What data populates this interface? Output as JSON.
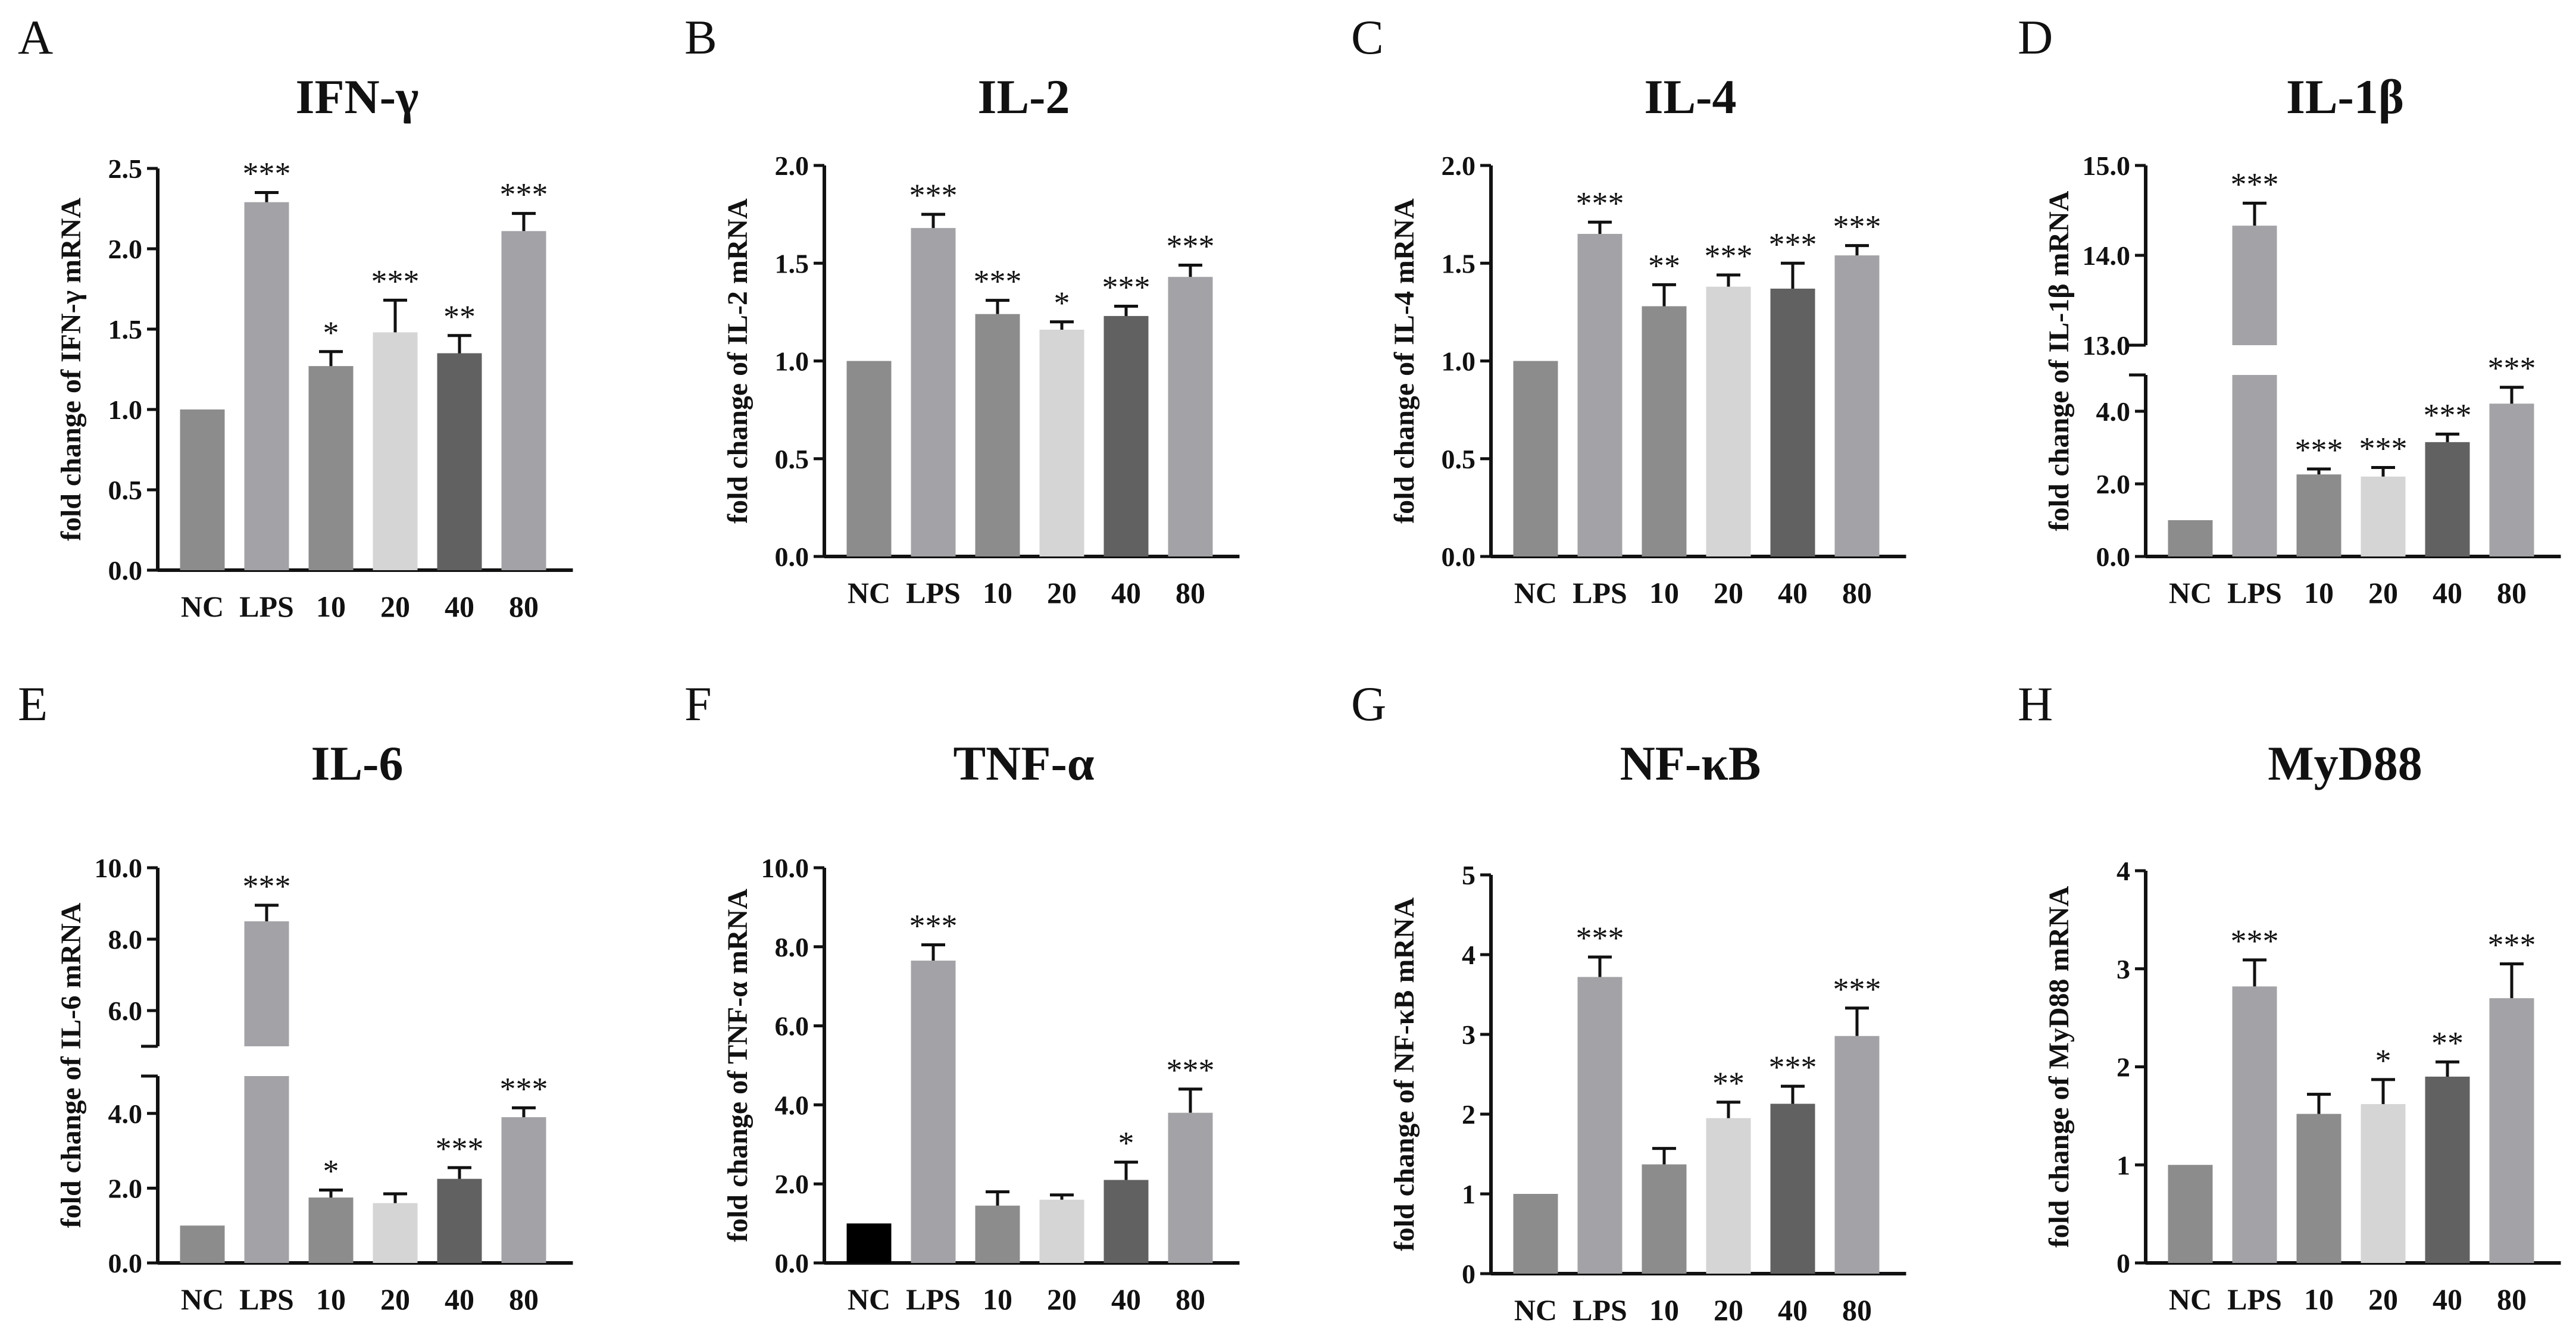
{
  "colors": {
    "NC": "#8c8c8c",
    "NC_black": "#000000",
    "LPS": "#a3a3a7",
    "10": "#8c8c8c",
    "20": "#d5d5d5",
    "40": "#616161",
    "80": "#a3a3a7",
    "axis": "#111111"
  },
  "chart_data": [
    {
      "type": "bar",
      "letter": "A",
      "title": "IFN-γ",
      "ylabel": "fold change of IFN-γ mRNA",
      "categories": [
        "NC",
        "LPS",
        "10",
        "20",
        "40",
        "80"
      ],
      "values": [
        1.0,
        2.29,
        1.27,
        1.48,
        1.35,
        2.11
      ],
      "errors": [
        0,
        0.06,
        0.09,
        0.2,
        0.11,
        0.11
      ],
      "significance": [
        "",
        "***",
        "*",
        "***",
        "**",
        "***"
      ],
      "ylim": [
        0,
        2.5
      ],
      "yticks": [
        0,
        0.5,
        1.0,
        1.5,
        2.0,
        2.5
      ],
      "ytick_labels": [
        "0.0",
        "0.5",
        "1.0",
        "1.5",
        "2.0",
        "2.5"
      ]
    },
    {
      "type": "bar",
      "letter": "B",
      "title": "IL-2",
      "ylabel": "fold change of IL-2 mRNA",
      "categories": [
        "NC",
        "LPS",
        "10",
        "20",
        "40",
        "80"
      ],
      "values": [
        1.0,
        1.68,
        1.24,
        1.16,
        1.23,
        1.43
      ],
      "errors": [
        0,
        0.07,
        0.07,
        0.04,
        0.05,
        0.06
      ],
      "significance": [
        "",
        "***",
        "***",
        "*",
        "***",
        "***"
      ],
      "ylim": [
        0,
        2.0
      ],
      "yticks": [
        0,
        0.5,
        1.0,
        1.5,
        2.0
      ],
      "ytick_labels": [
        "0.0",
        "0.5",
        "1.0",
        "1.5",
        "2.0"
      ]
    },
    {
      "type": "bar",
      "letter": "C",
      "title": "IL-4",
      "ylabel": "fold change of IL-4 mRNA",
      "categories": [
        "NC",
        "LPS",
        "10",
        "20",
        "40",
        "80"
      ],
      "values": [
        1.0,
        1.65,
        1.28,
        1.38,
        1.37,
        1.54
      ],
      "errors": [
        0,
        0.06,
        0.11,
        0.06,
        0.13,
        0.05
      ],
      "significance": [
        "",
        "***",
        "**",
        "***",
        "***",
        "***"
      ],
      "ylim": [
        0,
        2.0
      ],
      "yticks": [
        0,
        0.5,
        1.0,
        1.5,
        2.0
      ],
      "ytick_labels": [
        "0.0",
        "0.5",
        "1.0",
        "1.5",
        "2.0"
      ]
    },
    {
      "type": "bar",
      "letter": "D",
      "title": "IL-1β",
      "ylabel": "fold change of IL-1β mRNA",
      "categories": [
        "NC",
        "LPS",
        "10",
        "20",
        "40",
        "80"
      ],
      "values": [
        1.0,
        14.33,
        2.26,
        2.2,
        3.15,
        4.21
      ],
      "errors": [
        0,
        0.25,
        0.15,
        0.25,
        0.22,
        0.45
      ],
      "significance": [
        "",
        "***",
        "***",
        "***",
        "***",
        "***"
      ],
      "broken_axis": {
        "lower": [
          0,
          5.0
        ],
        "upper": [
          13.0,
          15.0
        ]
      },
      "yticks_lower": [
        0,
        2.0,
        4.0
      ],
      "ytick_labels_lower": [
        "0.0",
        "2.0",
        "4.0"
      ],
      "yticks_upper": [
        13.0,
        14.0,
        15.0
      ],
      "ytick_labels_upper": [
        "13.0",
        "14.0",
        "15.0"
      ]
    },
    {
      "type": "bar",
      "letter": "E",
      "title": "IL-6",
      "ylabel": "fold change of IL-6 mRNA",
      "categories": [
        "NC",
        "LPS",
        "10",
        "20",
        "40",
        "80"
      ],
      "values": [
        1.0,
        8.5,
        1.75,
        1.6,
        2.25,
        3.9
      ],
      "errors": [
        0,
        0.45,
        0.2,
        0.25,
        0.3,
        0.25
      ],
      "significance": [
        "",
        "***",
        "*",
        "",
        "***",
        "***"
      ],
      "broken_axis": {
        "lower": [
          0,
          5.0
        ],
        "upper": [
          5.0,
          10.0
        ]
      },
      "yticks_lower": [
        0,
        2.0,
        4.0
      ],
      "ytick_labels_lower": [
        "0.0",
        "2.0",
        "4.0"
      ],
      "yticks_upper": [
        6.0,
        8.0,
        10.0
      ],
      "ytick_labels_upper": [
        "6.0",
        "8.0",
        "10.0"
      ]
    },
    {
      "type": "bar",
      "letter": "F",
      "title": "TNF-α",
      "ylabel": "fold change of TNF-α mRNA",
      "categories": [
        "NC",
        "LPS",
        "10",
        "20",
        "40",
        "80"
      ],
      "values": [
        1.0,
        7.65,
        1.45,
        1.6,
        2.1,
        3.8
      ],
      "errors": [
        0,
        0.4,
        0.35,
        0.12,
        0.45,
        0.6
      ],
      "significance": [
        "",
        "***",
        "",
        "",
        "*",
        "***"
      ],
      "nc_black": true,
      "ylim": [
        0,
        10.0
      ],
      "yticks": [
        0,
        2.0,
        4.0,
        6.0,
        8.0,
        10.0
      ],
      "ytick_labels": [
        "0.0",
        "2.0",
        "4.0",
        "6.0",
        "8.0",
        "10.0"
      ]
    },
    {
      "type": "bar",
      "letter": "G",
      "title": "NF-κB",
      "ylabel": "fold change of NF-κB mRNA",
      "categories": [
        "NC",
        "LPS",
        "10",
        "20",
        "40",
        "80"
      ],
      "values": [
        1.0,
        3.72,
        1.37,
        1.95,
        2.13,
        2.98
      ],
      "errors": [
        0,
        0.25,
        0.2,
        0.2,
        0.22,
        0.35
      ],
      "significance": [
        "",
        "***",
        "",
        "**",
        "***",
        "***"
      ],
      "ylim": [
        0,
        5
      ],
      "yticks": [
        0,
        1,
        2,
        3,
        4,
        5
      ],
      "ytick_labels": [
        "0",
        "1",
        "2",
        "3",
        "4",
        "5"
      ]
    },
    {
      "type": "bar",
      "letter": "H",
      "title": "MyD88",
      "ylabel": "fold change of MyD88 mRNA",
      "categories": [
        "NC",
        "LPS",
        "10",
        "20",
        "40",
        "80"
      ],
      "values": [
        1.0,
        2.82,
        1.52,
        1.62,
        1.9,
        2.7
      ],
      "errors": [
        0,
        0.27,
        0.2,
        0.25,
        0.15,
        0.35
      ],
      "significance": [
        "",
        "***",
        "",
        "*",
        "**",
        "***"
      ],
      "ylim": [
        0,
        4
      ],
      "yticks": [
        0,
        1,
        2,
        3,
        4
      ],
      "ytick_labels": [
        "0",
        "1",
        "2",
        "3",
        "4"
      ]
    }
  ]
}
